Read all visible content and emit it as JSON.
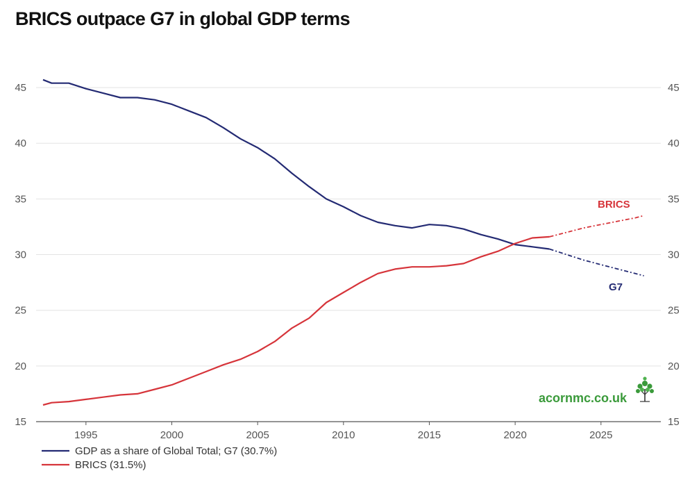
{
  "title": "BRICS outpace G7 in global GDP terms",
  "colors": {
    "g7": "#232a73",
    "brics": "#d6343a",
    "brand": "#3a9a3a",
    "grid": "#e3e3e3"
  },
  "brand_text": "acornmc.co.uk",
  "chart_data": {
    "type": "line",
    "title": "BRICS outpace G7 in global GDP terms",
    "xlabel": "",
    "ylabel": "",
    "xlim": [
      1992.5,
      2028
    ],
    "ylim": [
      15,
      47
    ],
    "x_ticks": [
      1995,
      2000,
      2005,
      2010,
      2015,
      2020,
      2025
    ],
    "y_ticks": [
      15,
      20,
      25,
      30,
      35,
      40,
      45
    ],
    "projection_start": 2022,
    "series": [
      {
        "name": "GDP as a share of Global Total; G7 (30.7%)",
        "label": "G7",
        "color": "#232a73",
        "x": [
          1992.5,
          1993,
          1994,
          1995,
          1996,
          1997,
          1998,
          1999,
          2000,
          2001,
          2002,
          2003,
          2004,
          2005,
          2006,
          2007,
          2008,
          2009,
          2010,
          2011,
          2012,
          2013,
          2014,
          2015,
          2016,
          2017,
          2018,
          2019,
          2020,
          2021,
          2022,
          2023,
          2024,
          2025,
          2026,
          2027,
          2027.5
        ],
        "values": [
          45.7,
          45.4,
          45.4,
          44.9,
          44.5,
          44.1,
          44.1,
          43.9,
          43.5,
          42.9,
          42.3,
          41.4,
          40.4,
          39.6,
          38.6,
          37.3,
          36.1,
          35.0,
          34.3,
          33.5,
          32.9,
          32.6,
          32.4,
          32.7,
          32.6,
          32.3,
          31.8,
          31.4,
          30.9,
          30.7,
          30.5,
          30.0,
          29.5,
          29.1,
          28.7,
          28.3,
          28.1
        ]
      },
      {
        "name": "BRICS (31.5%)",
        "label": "BRICS",
        "color": "#d6343a",
        "x": [
          1992.5,
          1993,
          1994,
          1995,
          1996,
          1997,
          1998,
          1999,
          2000,
          2001,
          2002,
          2003,
          2004,
          2005,
          2006,
          2007,
          2008,
          2009,
          2010,
          2011,
          2012,
          2013,
          2014,
          2015,
          2016,
          2017,
          2018,
          2019,
          2020,
          2021,
          2022,
          2023,
          2024,
          2025,
          2026,
          2027,
          2027.5
        ],
        "values": [
          16.5,
          16.7,
          16.8,
          17.0,
          17.2,
          17.4,
          17.5,
          17.9,
          18.3,
          18.9,
          19.5,
          20.1,
          20.6,
          21.3,
          22.2,
          23.4,
          24.3,
          25.7,
          26.6,
          27.5,
          28.3,
          28.7,
          28.9,
          28.9,
          29.0,
          29.2,
          29.8,
          30.3,
          31.0,
          31.5,
          31.6,
          32.0,
          32.4,
          32.7,
          33.0,
          33.3,
          33.5
        ]
      }
    ],
    "legend_position": "bottom-left"
  }
}
